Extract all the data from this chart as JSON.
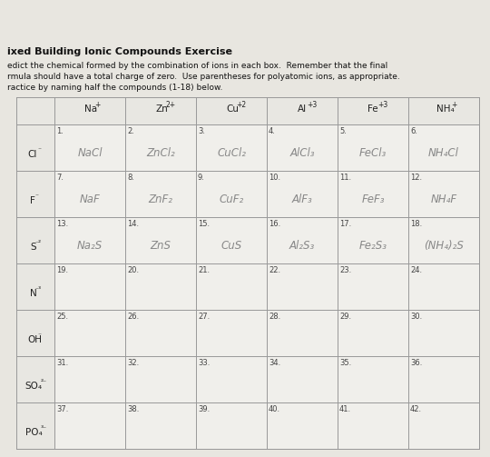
{
  "title": "ixed Building Ionic Compounds Exercise",
  "inst_line1": "edict the chemical formed by the combination of ions in each box.  Remember that the final",
  "inst_line2": "rmula should have a total charge of zero.  Use parentheses for polyatomic ions, as appropriate.",
  "inst_line3": "ractice by naming half the compounds (1-18) below.",
  "bg_color": "#c8c8c0",
  "paper_color": "#e8e6e0",
  "table_line_color": "#999999",
  "col_headers": [
    [
      "Na",
      "+"
    ],
    [
      "Zn",
      "2+"
    ],
    [
      "Cu",
      "+2"
    ],
    [
      "Al",
      "+3"
    ],
    [
      "Fe",
      "+3"
    ],
    [
      "NH₄",
      "+"
    ]
  ],
  "row_headers": [
    [
      "Cl",
      "⁻"
    ],
    [
      "F",
      "⁻"
    ],
    [
      "S",
      "⁻²"
    ],
    [
      "N",
      "⁻³"
    ],
    [
      "OH",
      "⁻"
    ],
    [
      "SO₄",
      "²⁻"
    ],
    [
      "PO₄",
      "³⁻"
    ]
  ],
  "cell_numbers": [
    [
      "1.",
      "2.",
      "3.",
      "4.",
      "5.",
      "6."
    ],
    [
      "7.",
      "8.",
      "9.",
      "10.",
      "11.",
      "12."
    ],
    [
      "13.",
      "14.",
      "15.",
      "16.",
      "17.",
      "18."
    ],
    [
      "19.",
      "20.",
      "21.",
      "22.",
      "23.",
      "24."
    ],
    [
      "25.",
      "26.",
      "27.",
      "28.",
      "29.",
      "30."
    ],
    [
      "31.",
      "32.",
      "33.",
      "34.",
      "35.",
      "36."
    ],
    [
      "37.",
      "38.",
      "39.",
      "40.",
      "41.",
      "42."
    ]
  ],
  "handwritten": {
    "0,0": "NaCl",
    "0,1": "ZnCl₂",
    "0,2": "CuCl₂",
    "0,3": "AlCl₃",
    "0,4": "FeCl₃",
    "0,5": "NH₄Cl",
    "1,0": "NaF",
    "1,1": "ZnF₂",
    "1,2": "CuF₂",
    "1,3": "AlF₃",
    "1,4": "FeF₃",
    "1,5": "NH₄F",
    "2,0": "Na₂S",
    "2,1": "ZnS",
    "2,2": "CuS",
    "2,3": "Al₂S₃",
    "2,4": "Fe₂S₃",
    "2,5": "(NH₄)₂S"
  },
  "hw_color": "#888888",
  "num_color": "#444444",
  "header_text_color": "#222222",
  "fig_w": 5.4,
  "fig_h": 5.03,
  "dpi": 100
}
